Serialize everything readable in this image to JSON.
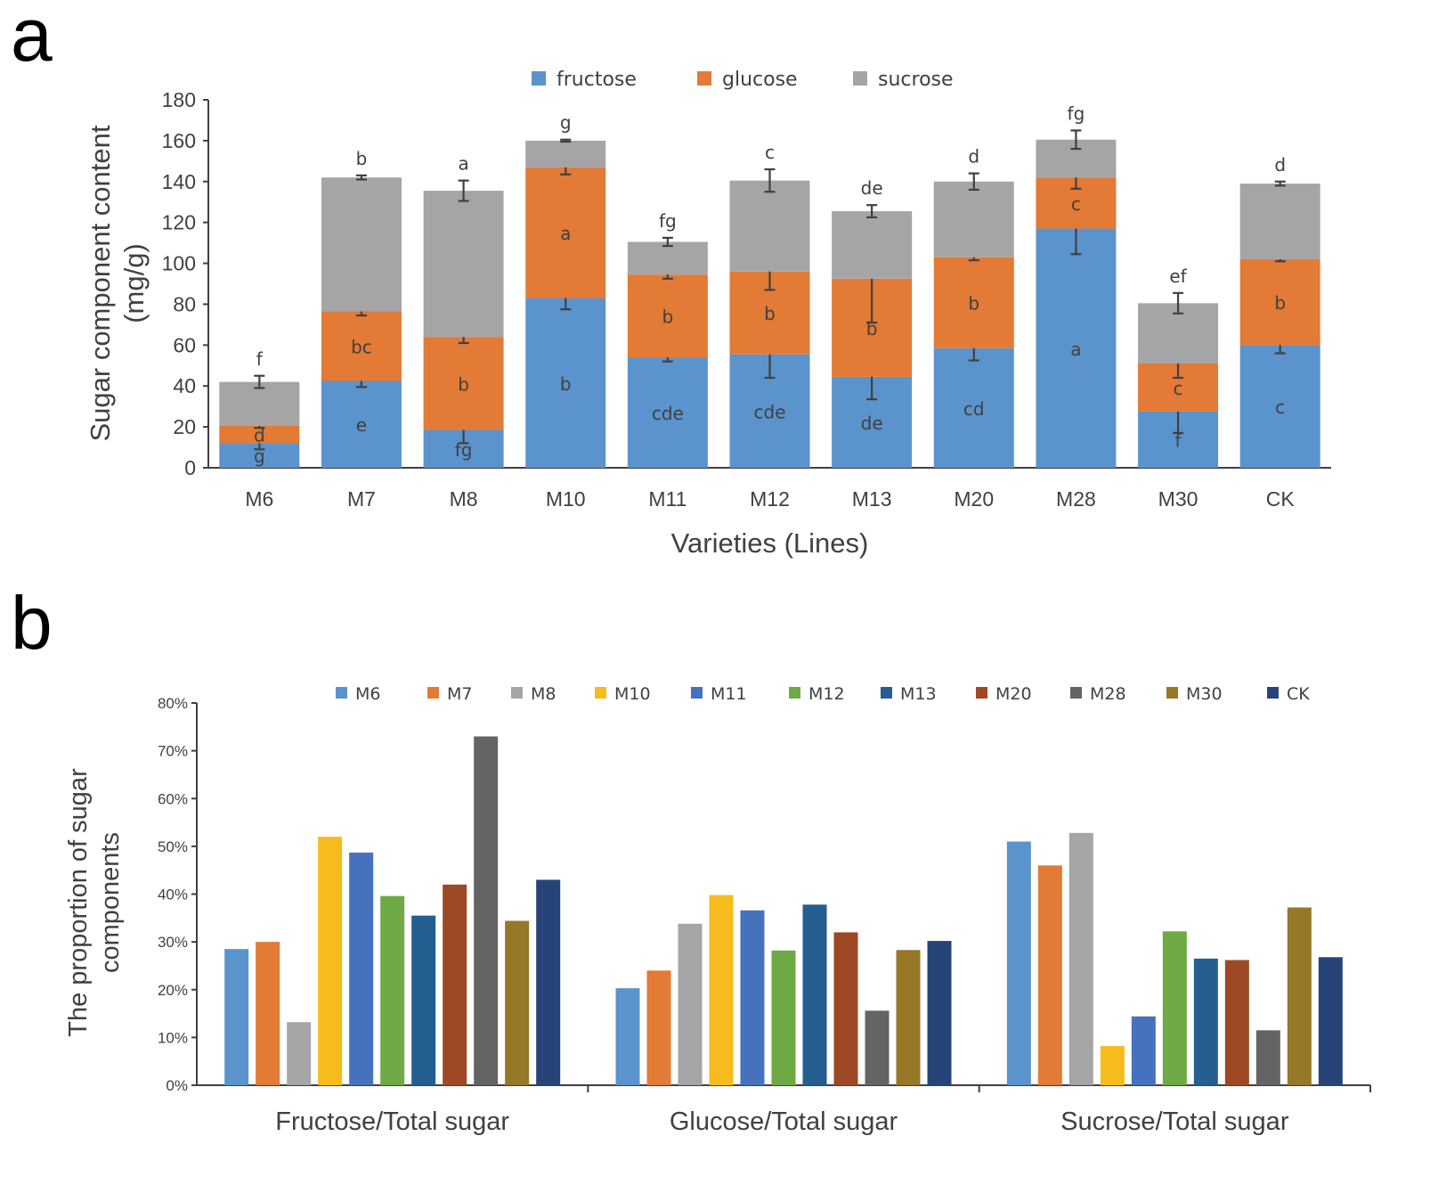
{
  "chart_data": [
    {
      "panel": "a",
      "type": "bar",
      "stacked": true,
      "categories": [
        "M6",
        "M7",
        "M8",
        "M10",
        "M11",
        "M12",
        "M13",
        "M20",
        "M28",
        "M30",
        "CK"
      ],
      "xlabel": "Varieties (Lines)",
      "ylabel": "Sugar component content (mg/g)",
      "ylabel_lines": [
        "Sugar component content",
        "(mg/g)"
      ],
      "ylim": [
        0,
        180
      ],
      "yticks": [
        0,
        20,
        40,
        60,
        80,
        100,
        120,
        140,
        160,
        180
      ],
      "legend_position": "top-center",
      "series": [
        {
          "name": "fructose",
          "color": "#5b93cd",
          "values": [
            12,
            42.5,
            18.5,
            83,
            54,
            55.5,
            44.5,
            58.5,
            117,
            27.5,
            60
          ],
          "errors": [
            3,
            3,
            6.5,
            5.5,
            2,
            11.5,
            11,
            6,
            12.5,
            10.5,
            4
          ],
          "letters": [
            "g",
            "e",
            "fg",
            "b",
            "cde",
            "cde",
            "de",
            "cd",
            "a",
            "f",
            "c"
          ]
        },
        {
          "name": "glucose",
          "color": "#e37a35",
          "values": [
            8.5,
            34,
            45.5,
            64,
            40.5,
            40.5,
            48,
            44.5,
            25,
            23.5,
            42
          ],
          "errors": [
            1,
            2,
            3,
            3.5,
            2,
            9,
            21.5,
            1.5,
            5.5,
            7,
            1
          ],
          "letters": [
            "d",
            "bc",
            "b",
            "a",
            "b",
            "b",
            "b",
            "b",
            "c",
            "c",
            "b"
          ]
        },
        {
          "name": "sucrose",
          "color": "#a5a5a5",
          "values": [
            21.5,
            65.5,
            71.5,
            13,
            16,
            44.5,
            33,
            37,
            18.5,
            29.5,
            37
          ],
          "errors": [
            3,
            1,
            5,
            0.5,
            2,
            5.5,
            3,
            4,
            4.5,
            5,
            1
          ],
          "letters": [
            "f",
            "b",
            "a",
            "g",
            "fg",
            "c",
            "de",
            "d",
            "fg",
            "ef",
            "d"
          ]
        }
      ]
    },
    {
      "panel": "b",
      "type": "bar",
      "groups": [
        "Fructose/Total sugar",
        "Glucose/Total sugar",
        "Sucrose/Total sugar"
      ],
      "ylabel": "The proportion of sugar components",
      "ylabel_lines": [
        "The proportion of sugar",
        "components"
      ],
      "ylim": [
        0,
        80
      ],
      "yticks": [
        "0%",
        "10%",
        "20%",
        "30%",
        "40%",
        "50%",
        "60%",
        "70%",
        "80%"
      ],
      "legend_position": "top-center",
      "series": [
        {
          "name": "M6",
          "color": "#5b93cd",
          "values": [
            28.5,
            20.3,
            51
          ]
        },
        {
          "name": "M7",
          "color": "#e37a35",
          "values": [
            30,
            24,
            46
          ]
        },
        {
          "name": "M8",
          "color": "#a5a5a5",
          "values": [
            13.2,
            33.8,
            52.8
          ]
        },
        {
          "name": "M10",
          "color": "#f6bb1c",
          "values": [
            52,
            39.8,
            8.2
          ]
        },
        {
          "name": "M11",
          "color": "#4671bd",
          "values": [
            48.7,
            36.6,
            14.4
          ]
        },
        {
          "name": "M12",
          "color": "#6fa945",
          "values": [
            39.6,
            28.2,
            32.2
          ]
        },
        {
          "name": "M13",
          "color": "#255e91",
          "values": [
            35.5,
            37.8,
            26.5
          ]
        },
        {
          "name": "M20",
          "color": "#9e4925",
          "values": [
            42,
            32,
            26.2
          ]
        },
        {
          "name": "M28",
          "color": "#646464",
          "values": [
            73,
            15.6,
            11.5
          ]
        },
        {
          "name": "M30",
          "color": "#977728",
          "values": [
            34.4,
            28.3,
            37.2
          ]
        },
        {
          "name": "CK",
          "color": "#264478",
          "values": [
            43,
            30.2,
            26.8
          ]
        }
      ]
    }
  ]
}
